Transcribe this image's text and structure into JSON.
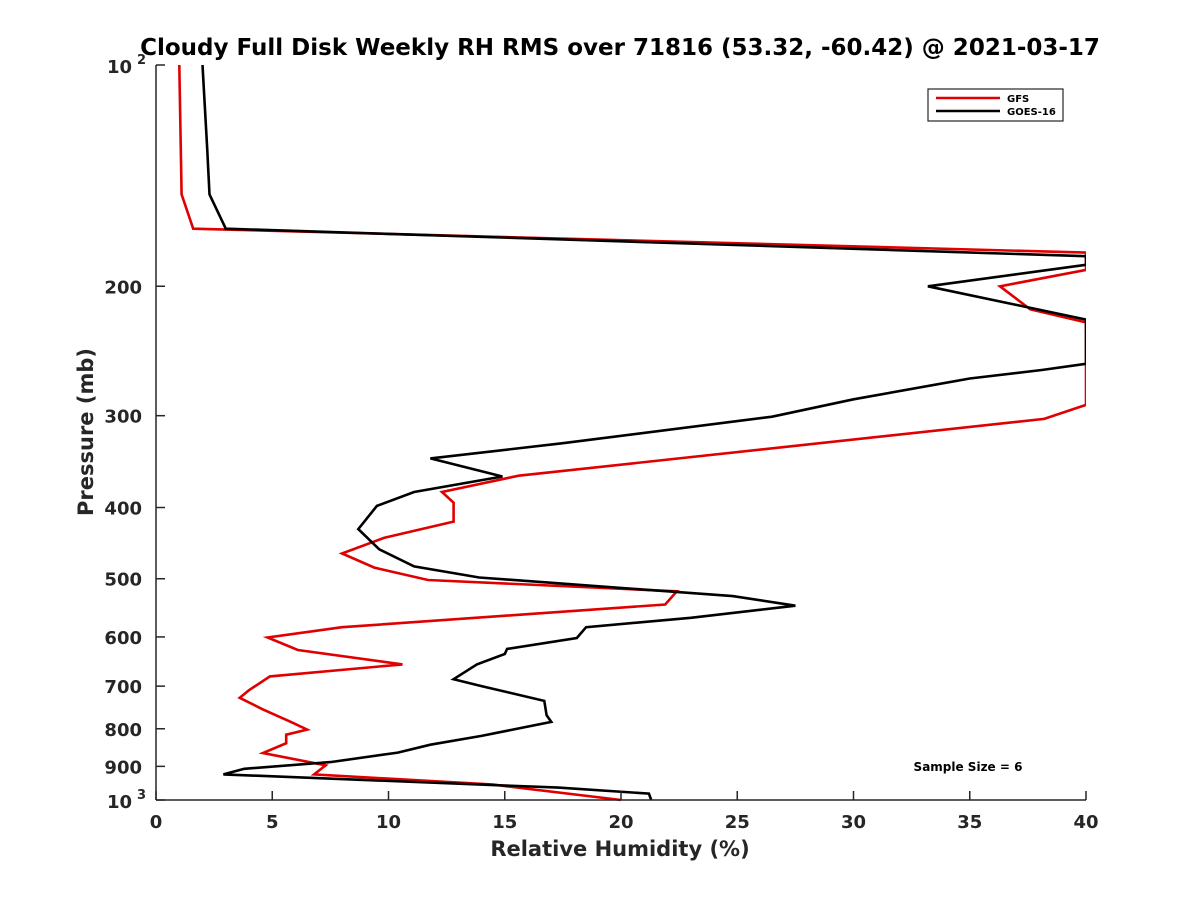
{
  "chart_data": {
    "type": "line",
    "title": "Cloudy Full Disk Weekly RH RMS over 71816 (53.32, -60.42) @ 2021-03-17",
    "xlabel": "Relative Humidity (%)",
    "ylabel": "Pressure (mb)",
    "xlim": [
      0,
      40
    ],
    "ylim": [
      100,
      1000
    ],
    "y_scale": "log",
    "y_reversed": true,
    "x_ticks": [
      0,
      5,
      10,
      15,
      20,
      25,
      30,
      35,
      40
    ],
    "y_ticks": [
      {
        "value": 100,
        "label": "10",
        "sup": "2"
      },
      {
        "value": 200,
        "label": "200"
      },
      {
        "value": 300,
        "label": "300"
      },
      {
        "value": 400,
        "label": "400"
      },
      {
        "value": 500,
        "label": "500"
      },
      {
        "value": 600,
        "label": "600"
      },
      {
        "value": 700,
        "label": "700"
      },
      {
        "value": 800,
        "label": "800"
      },
      {
        "value": 900,
        "label": "900"
      },
      {
        "value": 1000,
        "label": "10",
        "sup": "3"
      }
    ],
    "legend_position": "top-right",
    "annotation": "Sample Size = 6",
    "grid": false,
    "series": [
      {
        "name": "GFS",
        "color": "#e00000",
        "points": [
          [
            1.0,
            100
          ],
          [
            1.1,
            150
          ],
          [
            1.6,
            167
          ],
          [
            40,
            180
          ],
          [
            40,
            190
          ],
          [
            36.3,
            200
          ],
          [
            37.6,
            215
          ],
          [
            40,
            224
          ],
          [
            40,
            290
          ],
          [
            38.2,
            303
          ],
          [
            15.6,
            362
          ],
          [
            12.3,
            381
          ],
          [
            12.8,
            394
          ],
          [
            12.8,
            418
          ],
          [
            9.8,
            440
          ],
          [
            8.0,
            462
          ],
          [
            9.4,
            483
          ],
          [
            11.7,
            502
          ],
          [
            22.4,
            520
          ],
          [
            21.9,
            542
          ],
          [
            16.2,
            558
          ],
          [
            8.0,
            582
          ],
          [
            4.8,
            601
          ],
          [
            6.1,
            625
          ],
          [
            10.6,
            654
          ],
          [
            4.9,
            679
          ],
          [
            4.0,
            709
          ],
          [
            3.6,
            726
          ],
          [
            4.6,
            753
          ],
          [
            5.8,
            783
          ],
          [
            6.5,
            802
          ],
          [
            5.6,
            815
          ],
          [
            5.6,
            837
          ],
          [
            4.6,
            863
          ],
          [
            7.3,
            897
          ],
          [
            6.8,
            923
          ],
          [
            14.5,
            953
          ],
          [
            20.0,
            1000
          ]
        ]
      },
      {
        "name": "GOES-16",
        "color": "#000000",
        "points": [
          [
            2.0,
            100
          ],
          [
            2.2,
            130
          ],
          [
            2.3,
            150
          ],
          [
            3.0,
            167
          ],
          [
            40,
            182
          ],
          [
            40,
            187
          ],
          [
            33.2,
            200
          ],
          [
            40,
            222
          ],
          [
            40,
            255
          ],
          [
            38.1,
            260
          ],
          [
            35.0,
            267
          ],
          [
            30.0,
            285
          ],
          [
            26.5,
            301
          ],
          [
            17.5,
            327
          ],
          [
            11.8,
            343
          ],
          [
            14.9,
            363
          ],
          [
            11.1,
            381
          ],
          [
            9.5,
            398
          ],
          [
            8.7,
            428
          ],
          [
            9.6,
            456
          ],
          [
            11.1,
            481
          ],
          [
            13.9,
            498
          ],
          [
            24.8,
            528
          ],
          [
            27.5,
            544
          ],
          [
            23.0,
            565
          ],
          [
            18.5,
            582
          ],
          [
            18.1,
            602
          ],
          [
            15.1,
            623
          ],
          [
            15.0,
            633
          ],
          [
            13.8,
            654
          ],
          [
            12.8,
            685
          ],
          [
            14.0,
            700
          ],
          [
            16.7,
            733
          ],
          [
            16.8,
            767
          ],
          [
            17.0,
            783
          ],
          [
            14.0,
            818
          ],
          [
            11.8,
            841
          ],
          [
            10.4,
            862
          ],
          [
            7.5,
            888
          ],
          [
            3.8,
            907
          ],
          [
            2.9,
            923
          ],
          [
            17.3,
            962
          ],
          [
            21.2,
            980
          ],
          [
            21.3,
            1000
          ]
        ]
      }
    ]
  }
}
